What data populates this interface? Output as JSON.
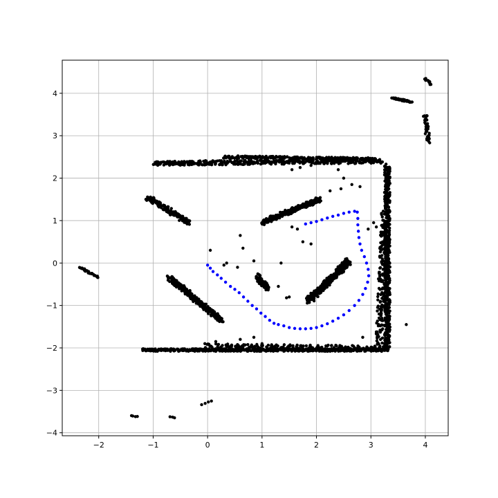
{
  "chart_data": {
    "type": "scatter",
    "title": "",
    "xlabel": "",
    "ylabel": "",
    "xlim": [
      -2.67,
      4.42
    ],
    "ylim": [
      -4.07,
      4.78
    ],
    "grid": true,
    "x_ticks": [
      -2,
      -1,
      0,
      1,
      2,
      3,
      4
    ],
    "y_ticks": [
      -4,
      -3,
      -2,
      -1,
      0,
      1,
      2,
      3,
      4
    ],
    "x_tick_labels": [
      "−2",
      "−1",
      "0",
      "1",
      "2",
      "3",
      "4"
    ],
    "y_tick_labels": [
      "−4",
      "−3",
      "−2",
      "−1",
      "0",
      "1",
      "2",
      "3",
      "4"
    ],
    "series": [
      {
        "color": "#000000",
        "marker": "dot",
        "segments": [
          {
            "from": [
              -1.2,
              -2.05
            ],
            "to": [
              3.3,
              -2.05
            ],
            "spread": 0.03,
            "count": 520
          },
          {
            "from": [
              0.0,
              -1.95
            ],
            "to": [
              3.2,
              -2.0
            ],
            "spread": 0.05,
            "count": 180
          },
          {
            "from": [
              -1.0,
              2.35
            ],
            "to": [
              3.2,
              2.4
            ],
            "spread": 0.05,
            "count": 420
          },
          {
            "from": [
              0.3,
              2.5
            ],
            "to": [
              3.1,
              2.45
            ],
            "spread": 0.03,
            "count": 220
          },
          {
            "from": [
              3.3,
              2.3
            ],
            "to": [
              3.3,
              -2.0
            ],
            "spread": 0.05,
            "count": 520
          },
          {
            "from": [
              3.25,
              1.2
            ],
            "to": [
              3.15,
              -1.9
            ],
            "spread": 0.06,
            "count": 160
          },
          {
            "from": [
              -0.7,
              -0.35
            ],
            "to": [
              0.25,
              -1.35
            ],
            "spread": 0.05,
            "count": 300
          },
          {
            "from": [
              -1.1,
              1.55
            ],
            "to": [
              -0.35,
              0.95
            ],
            "spread": 0.05,
            "count": 150
          },
          {
            "from": [
              1.0,
              0.95
            ],
            "to": [
              2.05,
              1.5
            ],
            "spread": 0.05,
            "count": 260
          },
          {
            "from": [
              1.85,
              -0.9
            ],
            "to": [
              2.6,
              0.05
            ],
            "spread": 0.06,
            "count": 280
          },
          {
            "from": [
              0.9,
              -0.3
            ],
            "to": [
              1.1,
              -0.6
            ],
            "spread": 0.05,
            "count": 90
          },
          {
            "from": [
              3.4,
              3.88
            ],
            "to": [
              3.75,
              3.8
            ],
            "spread": 0.02,
            "count": 45
          },
          {
            "from": [
              4.0,
              3.5
            ],
            "to": [
              4.05,
              2.85
            ],
            "spread": 0.04,
            "count": 40
          },
          {
            "from": [
              4.0,
              4.35
            ],
            "to": [
              4.1,
              4.2
            ],
            "spread": 0.02,
            "count": 12
          },
          {
            "from": [
              -2.35,
              -0.1
            ],
            "to": [
              -2.0,
              -0.35
            ],
            "spread": 0.02,
            "count": 25
          },
          {
            "from": [
              -1.4,
              -3.6
            ],
            "to": [
              -1.3,
              -3.62
            ],
            "spread": 0.01,
            "count": 4
          },
          {
            "from": [
              -0.7,
              -3.62
            ],
            "to": [
              -0.6,
              -3.65
            ],
            "spread": 0.01,
            "count": 3
          },
          {
            "from": [
              -0.1,
              -3.33
            ],
            "to": [
              0.08,
              -3.25
            ],
            "spread": 0.01,
            "count": 4
          }
        ],
        "scatter_points": [
          [
            0.6,
            0.65
          ],
          [
            0.05,
            0.3
          ],
          [
            0.65,
            0.35
          ],
          [
            0.35,
            0.0
          ],
          [
            0.55,
            -0.1
          ],
          [
            0.3,
            -0.05
          ],
          [
            1.35,
            0.0
          ],
          [
            1.75,
            0.5
          ],
          [
            1.55,
            0.85
          ],
          [
            1.65,
            0.8
          ],
          [
            1.3,
            -0.55
          ],
          [
            1.5,
            -0.8
          ],
          [
            1.45,
            -0.82
          ],
          [
            0.85,
            0.05
          ],
          [
            1.9,
            0.45
          ],
          [
            2.5,
            2.0
          ],
          [
            2.65,
            1.85
          ],
          [
            2.25,
            1.7
          ],
          [
            2.45,
            1.75
          ],
          [
            1.55,
            2.2
          ],
          [
            1.7,
            2.25
          ],
          [
            1.9,
            2.3
          ],
          [
            2.4,
            2.2
          ],
          [
            3.65,
            -1.45
          ],
          [
            2.85,
            -1.75
          ],
          [
            1.0,
            -1.9
          ],
          [
            0.85,
            -1.75
          ],
          [
            0.6,
            -1.8
          ],
          [
            -0.05,
            -1.9
          ],
          [
            0.15,
            -1.85
          ],
          [
            2.8,
            1.8
          ],
          [
            2.95,
            0.8
          ],
          [
            3.05,
            0.95
          ],
          [
            3.1,
            0.85
          ]
        ]
      },
      {
        "color": "#0000ff",
        "marker": "dot",
        "points": [
          [
            0.0,
            -0.05
          ],
          [
            0.05,
            -0.12
          ],
          [
            0.1,
            -0.2
          ],
          [
            0.18,
            -0.28
          ],
          [
            0.25,
            -0.36
          ],
          [
            0.33,
            -0.45
          ],
          [
            0.42,
            -0.55
          ],
          [
            0.5,
            -0.62
          ],
          [
            0.58,
            -0.7
          ],
          [
            0.66,
            -0.8
          ],
          [
            0.74,
            -0.9
          ],
          [
            0.82,
            -1.0
          ],
          [
            0.9,
            -1.08
          ],
          [
            0.98,
            -1.18
          ],
          [
            1.06,
            -1.26
          ],
          [
            1.14,
            -1.35
          ],
          [
            1.22,
            -1.42
          ],
          [
            1.3,
            -1.45
          ],
          [
            1.4,
            -1.48
          ],
          [
            1.5,
            -1.52
          ],
          [
            1.6,
            -1.54
          ],
          [
            1.7,
            -1.55
          ],
          [
            1.8,
            -1.55
          ],
          [
            1.9,
            -1.54
          ],
          [
            2.0,
            -1.52
          ],
          [
            2.1,
            -1.48
          ],
          [
            2.2,
            -1.43
          ],
          [
            2.3,
            -1.37
          ],
          [
            2.4,
            -1.3
          ],
          [
            2.5,
            -1.22
          ],
          [
            2.6,
            -1.12
          ],
          [
            2.7,
            -1.0
          ],
          [
            2.78,
            -0.88
          ],
          [
            2.85,
            -0.74
          ],
          [
            2.9,
            -0.6
          ],
          [
            2.94,
            -0.45
          ],
          [
            2.96,
            -0.3
          ],
          [
            2.95,
            -0.15
          ],
          [
            2.92,
            0.0
          ],
          [
            2.88,
            0.15
          ],
          [
            2.83,
            0.3
          ],
          [
            2.8,
            0.45
          ],
          [
            2.78,
            0.6
          ],
          [
            2.77,
            0.75
          ],
          [
            2.76,
            0.9
          ],
          [
            2.76,
            1.05
          ],
          [
            2.75,
            1.2
          ],
          [
            2.7,
            1.22
          ],
          [
            2.6,
            1.2
          ],
          [
            2.5,
            1.17
          ],
          [
            2.4,
            1.13
          ],
          [
            2.3,
            1.1
          ],
          [
            2.2,
            1.06
          ],
          [
            2.1,
            1.02
          ],
          [
            2.0,
            0.98
          ],
          [
            1.9,
            0.95
          ],
          [
            1.8,
            0.92
          ]
        ]
      }
    ]
  }
}
